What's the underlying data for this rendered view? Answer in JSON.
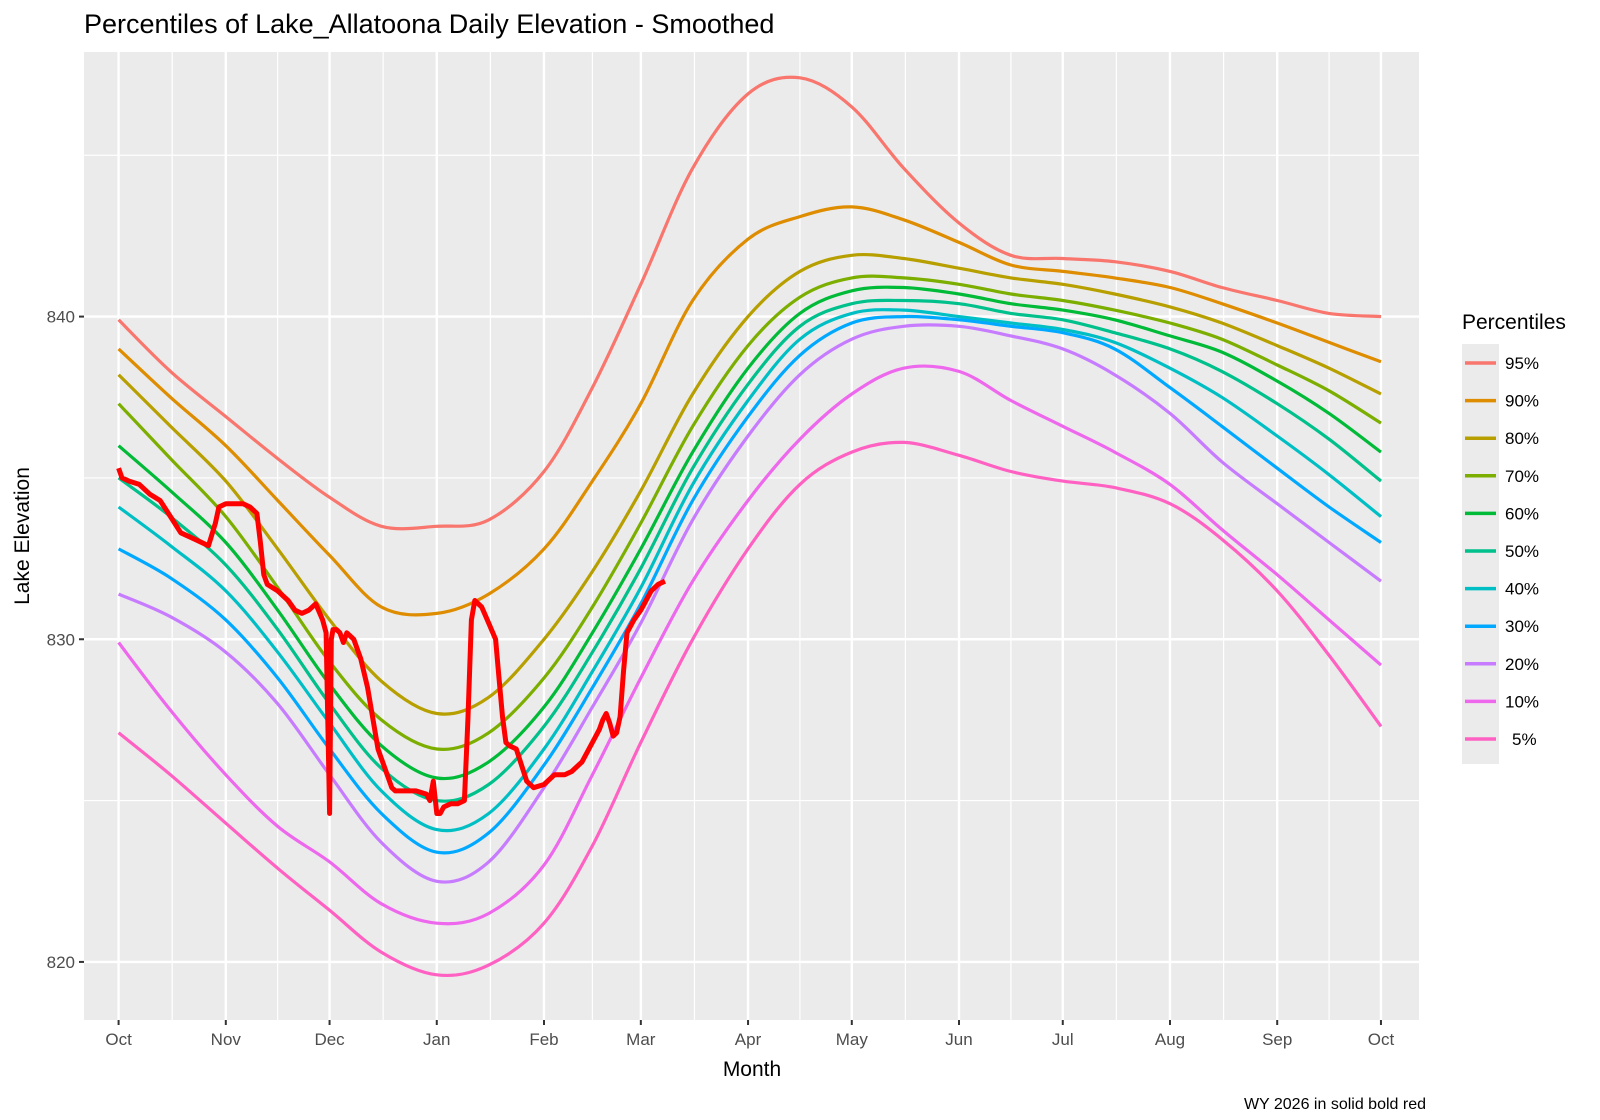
{
  "chart_data": {
    "type": "line",
    "title": "Percentiles of Lake_Allatoona Daily Elevation - Smoothed",
    "xlabel": "Month",
    "ylabel": "Lake Elevation",
    "caption": "WY 2026 in solid  bold red",
    "x_unit": "day of water year (0 = Oct 1)",
    "xlim": [
      -10,
      376
    ],
    "ylim": [
      818.2,
      848.2
    ],
    "grid": true,
    "x_ticks": [
      {
        "day": 0,
        "label": "Oct"
      },
      {
        "day": 31,
        "label": "Nov"
      },
      {
        "day": 61,
        "label": "Dec"
      },
      {
        "day": 92,
        "label": "Jan"
      },
      {
        "day": 123,
        "label": "Feb"
      },
      {
        "day": 151,
        "label": "Mar"
      },
      {
        "day": 182,
        "label": "Apr"
      },
      {
        "day": 212,
        "label": "May"
      },
      {
        "day": 243,
        "label": "Jun"
      },
      {
        "day": 273,
        "label": "Jul"
      },
      {
        "day": 304,
        "label": "Aug"
      },
      {
        "day": 335,
        "label": "Sep"
      },
      {
        "day": 365,
        "label": "Oct"
      }
    ],
    "y_ticks": [
      {
        "value": 820,
        "label": "820"
      },
      {
        "value": 830,
        "label": "830"
      },
      {
        "value": 840,
        "label": "840"
      }
    ],
    "y_minor": [
      825,
      835,
      845
    ],
    "legend": {
      "title": "Percentiles",
      "position": "right"
    },
    "x": [
      0,
      15,
      31,
      46,
      61,
      76,
      92,
      107,
      123,
      137,
      151,
      166,
      182,
      197,
      212,
      227,
      243,
      258,
      273,
      288,
      304,
      319,
      335,
      350,
      365
    ],
    "series": [
      {
        "name": "95%",
        "color": "#F8766D",
        "values": [
          839.9,
          838.3,
          836.9,
          835.6,
          834.4,
          833.5,
          833.5,
          833.7,
          835.2,
          837.8,
          841.0,
          844.6,
          846.9,
          847.4,
          846.5,
          844.6,
          842.9,
          841.9,
          841.8,
          841.7,
          841.4,
          840.9,
          840.5,
          840.1,
          840.0
        ]
      },
      {
        "name": "90%",
        "color": "#DE8C00",
        "values": [
          839.0,
          837.5,
          836.0,
          834.3,
          832.6,
          831.0,
          830.8,
          831.4,
          832.8,
          834.9,
          837.3,
          840.5,
          842.4,
          843.1,
          843.4,
          843.0,
          842.3,
          841.6,
          841.4,
          841.2,
          840.9,
          840.4,
          839.8,
          839.2,
          838.6
        ]
      },
      {
        "name": "80%",
        "color": "#B79F00",
        "values": [
          838.2,
          836.6,
          834.9,
          832.8,
          830.6,
          828.7,
          827.7,
          828.2,
          830.0,
          832.1,
          834.6,
          837.6,
          840.0,
          841.4,
          841.9,
          841.8,
          841.5,
          841.2,
          841.0,
          840.7,
          840.3,
          839.8,
          839.1,
          838.4,
          837.6
        ]
      },
      {
        "name": "70%",
        "color": "#7CAE00",
        "values": [
          837.3,
          835.6,
          833.8,
          831.6,
          829.3,
          827.5,
          826.6,
          827.1,
          828.8,
          831.0,
          833.6,
          836.6,
          839.1,
          840.6,
          841.2,
          841.2,
          841.0,
          840.7,
          840.5,
          840.2,
          839.8,
          839.3,
          838.5,
          837.7,
          836.7
        ]
      },
      {
        "name": "60%",
        "color": "#00BA38",
        "values": [
          836.0,
          834.6,
          833.0,
          830.9,
          828.6,
          826.7,
          825.7,
          826.2,
          827.9,
          830.2,
          832.8,
          835.8,
          838.4,
          840.1,
          840.8,
          840.9,
          840.7,
          840.4,
          840.2,
          839.9,
          839.4,
          838.9,
          838.0,
          837.0,
          835.8
        ]
      },
      {
        "name": "50%",
        "color": "#00C08B",
        "values": [
          835.0,
          833.8,
          832.3,
          830.3,
          828.0,
          826.0,
          825.0,
          825.5,
          827.3,
          829.6,
          832.2,
          835.3,
          837.9,
          839.7,
          840.4,
          840.5,
          840.4,
          840.1,
          839.9,
          839.5,
          839.0,
          838.3,
          837.3,
          836.2,
          834.9
        ]
      },
      {
        "name": "40%",
        "color": "#00BFC4",
        "values": [
          834.1,
          832.9,
          831.5,
          829.6,
          827.4,
          825.3,
          824.1,
          824.6,
          826.6,
          829.0,
          831.6,
          834.8,
          837.4,
          839.3,
          840.1,
          840.2,
          840.0,
          839.8,
          839.6,
          839.2,
          838.4,
          837.5,
          836.3,
          835.1,
          833.8
        ]
      },
      {
        "name": "30%",
        "color": "#00A9FF",
        "values": [
          832.8,
          831.9,
          830.6,
          828.8,
          826.6,
          824.6,
          823.4,
          824.0,
          826.1,
          828.5,
          831.1,
          834.3,
          836.9,
          838.8,
          839.8,
          840.0,
          839.9,
          839.7,
          839.5,
          839.0,
          837.8,
          836.6,
          835.3,
          834.1,
          833.0
        ]
      },
      {
        "name": "20%",
        "color": "#C77CFF",
        "values": [
          831.4,
          830.7,
          829.6,
          828.0,
          825.8,
          823.7,
          822.5,
          823.1,
          825.4,
          827.9,
          830.5,
          833.7,
          836.3,
          838.2,
          839.3,
          839.7,
          839.7,
          839.4,
          839.0,
          838.2,
          837.0,
          835.5,
          834.2,
          833.0,
          831.8
        ]
      },
      {
        "name": "10%",
        "color": "#ED68ED",
        "values": [
          829.9,
          827.8,
          825.8,
          824.2,
          823.1,
          821.8,
          821.2,
          821.5,
          823.0,
          825.8,
          828.8,
          831.8,
          834.3,
          836.2,
          837.6,
          838.4,
          838.3,
          837.4,
          836.6,
          835.8,
          834.8,
          833.4,
          832.0,
          830.6,
          829.2
        ]
      },
      {
        "name": "5%",
        "color": "#FF61C3",
        "values": [
          827.1,
          825.8,
          824.3,
          822.9,
          821.6,
          820.3,
          819.6,
          819.9,
          821.2,
          823.6,
          826.8,
          830.0,
          832.8,
          834.8,
          835.8,
          836.1,
          835.7,
          835.2,
          834.9,
          834.7,
          834.2,
          833.1,
          831.5,
          829.5,
          827.3
        ]
      }
    ],
    "current_year": {
      "name": "WY 2026",
      "color": "#FF0000",
      "x": [
        0,
        1,
        3,
        6,
        9,
        12,
        15,
        18,
        22,
        26,
        28,
        29,
        31,
        33,
        36,
        38,
        40,
        41,
        42,
        43,
        46,
        49,
        51,
        53,
        55,
        57,
        59,
        60,
        61,
        61.5,
        62,
        63,
        64,
        65,
        66,
        68,
        70,
        72,
        75,
        77,
        79,
        80,
        81,
        83,
        86,
        89,
        90,
        91,
        92,
        93,
        94,
        96,
        98,
        100,
        101,
        102,
        103,
        105,
        107,
        109,
        110,
        111,
        112,
        113,
        115,
        118,
        120,
        123,
        126,
        129,
        131,
        134,
        137,
        139,
        140,
        141,
        142,
        143,
        144,
        145,
        146,
        147,
        149,
        151,
        152,
        153,
        154,
        156,
        158
      ],
      "values": [
        835.3,
        835.0,
        834.9,
        834.8,
        834.5,
        834.3,
        833.8,
        833.3,
        833.1,
        832.9,
        833.6,
        834.1,
        834.2,
        834.2,
        834.2,
        834.1,
        833.9,
        833.0,
        832.0,
        831.7,
        831.5,
        831.2,
        830.9,
        830.8,
        830.9,
        831.1,
        830.6,
        830.2,
        824.6,
        830.0,
        830.3,
        830.3,
        830.2,
        829.9,
        830.2,
        830.0,
        829.4,
        828.5,
        826.6,
        826.0,
        825.4,
        825.3,
        825.3,
        825.3,
        825.3,
        825.2,
        825.0,
        825.6,
        824.6,
        824.6,
        824.8,
        824.9,
        824.9,
        825.0,
        827.5,
        830.6,
        831.2,
        831.0,
        830.5,
        830.0,
        828.8,
        827.6,
        826.8,
        826.7,
        826.6,
        825.6,
        825.4,
        825.5,
        825.8,
        825.8,
        825.9,
        826.2,
        826.8,
        827.2,
        827.5,
        827.7,
        827.4,
        827.0,
        827.1,
        827.6,
        829.0,
        830.2,
        830.6,
        830.9,
        831.1,
        831.3,
        831.5,
        831.7,
        831.8
      ]
    }
  }
}
